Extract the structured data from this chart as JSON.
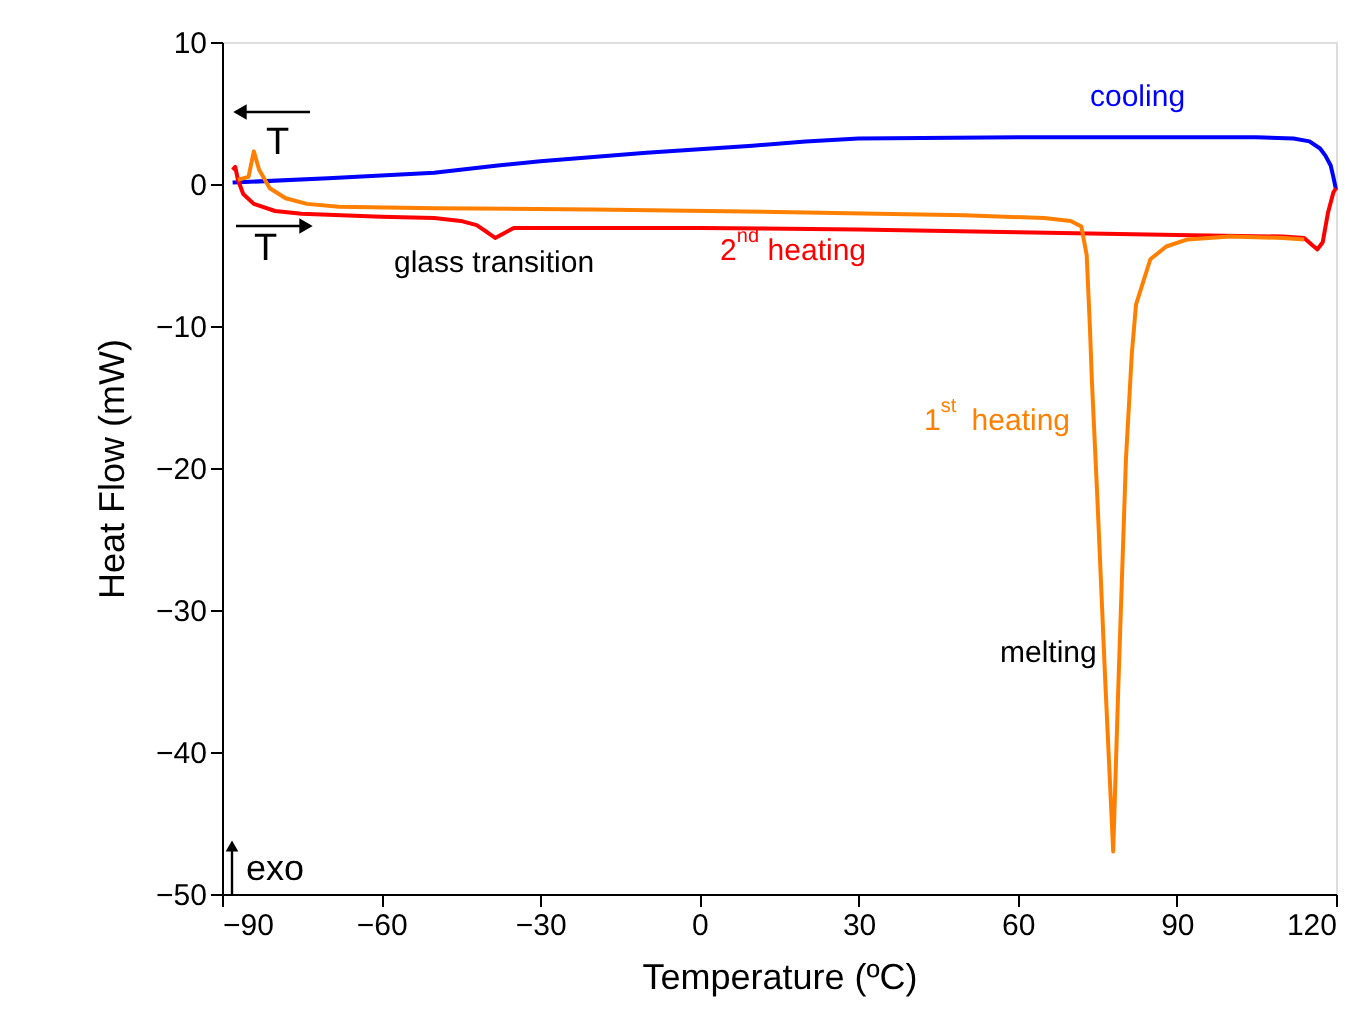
{
  "chart_data": {
    "type": "line",
    "xlabel": "Temperature (ºC)",
    "ylabel": "Heat Flow (mW)",
    "xlim": [
      -90,
      120
    ],
    "xticks": [
      -90,
      -60,
      -30,
      0,
      30,
      60,
      90,
      120
    ],
    "ylim": [
      -50,
      10
    ],
    "yticks": [
      -50,
      -40,
      -30,
      -20,
      -10,
      0,
      10
    ],
    "grid": false,
    "marker": "none",
    "line_style": "solid",
    "series": [
      {
        "name": "cooling",
        "color": "#0000ff",
        "x": [
          120,
          119.5,
          119,
          118,
          117,
          115,
          112,
          105,
          90,
          60,
          30,
          20,
          10,
          -10,
          -30,
          -38,
          -50,
          -70,
          -88
        ],
        "values": [
          -0.4,
          0.5,
          1.3,
          2.0,
          2.5,
          3.0,
          3.2,
          3.3,
          3.3,
          3.3,
          3.2,
          3.0,
          2.7,
          2.2,
          1.6,
          1.3,
          0.8,
          0.4,
          0.1
        ]
      },
      {
        "name": "2$^{nd}$ heating",
        "color": "#ff0000",
        "x": [
          -88,
          -87.5,
          -87,
          -86,
          -84,
          -80,
          -75,
          -60,
          -50,
          -45,
          -42,
          -40,
          -38.5,
          -37,
          -35,
          -20,
          0,
          30,
          60,
          90,
          110,
          114,
          115.5,
          116.5,
          117.5,
          118.5,
          119.5,
          120
        ],
        "values": [
          1.0,
          1.2,
          0.3,
          -0.7,
          -1.4,
          -1.9,
          -2.1,
          -2.3,
          -2.4,
          -2.6,
          -2.9,
          -3.4,
          -3.8,
          -3.5,
          -3.1,
          -3.1,
          -3.1,
          -3.2,
          -3.4,
          -3.6,
          -3.7,
          -3.8,
          -4.3,
          -4.6,
          -4.1,
          -2.0,
          -0.6,
          -0.3
        ]
      },
      {
        "name": "1$^{st}$ heating",
        "color": "#ff8000",
        "x": [
          -87,
          -85,
          -84,
          -83,
          -81,
          -78,
          -74,
          -68,
          -50,
          -20,
          20,
          50,
          65,
          70,
          72,
          73,
          73.6,
          74,
          75,
          76.5,
          78,
          79,
          80.4,
          81.5,
          82.3,
          85,
          88,
          92,
          100,
          110,
          114
        ],
        "values": [
          0.3,
          0.5,
          2.3,
          1.0,
          -0.3,
          -1.0,
          -1.4,
          -1.6,
          -1.7,
          -1.8,
          -2.0,
          -2.2,
          -2.4,
          -2.6,
          -3.0,
          -5,
          -10,
          -14,
          -22,
          -35,
          -47,
          -35,
          -19.4,
          -12,
          -8.5,
          -5.3,
          -4.4,
          -3.9,
          -3.7,
          -3.8,
          -3.9
        ]
      }
    ],
    "annotations": [
      "glass transition",
      "melting",
      "T",
      "T",
      "exo"
    ]
  }
}
